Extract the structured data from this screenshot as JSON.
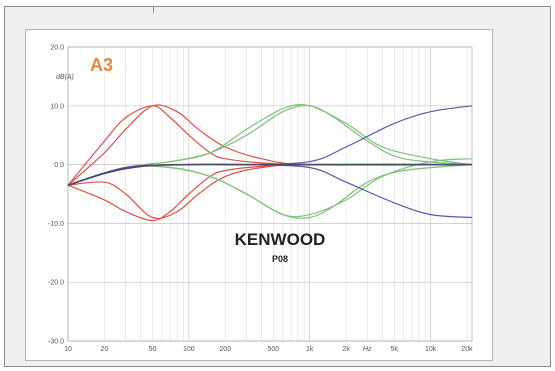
{
  "chart_data": {
    "type": "line",
    "brand": "KENWOOD",
    "model": "P08",
    "logo_text": "A3",
    "ylabel": "dB(A)",
    "xlabel": "Hz",
    "x_scale": "log",
    "xlim": [
      10,
      22000
    ],
    "ylim": [
      -30,
      20
    ],
    "yticks": [
      20,
      10,
      0,
      -10,
      -20,
      -30
    ],
    "ytick_labels": [
      "20.0",
      "10.0",
      "0.0",
      "-10.0",
      "-20.0",
      "-30.0"
    ],
    "xticks": [
      10,
      20,
      50,
      100,
      200,
      500,
      1000,
      2000,
      5000,
      10000,
      20000
    ],
    "xtick_labels": [
      "10",
      "20",
      "50",
      "100",
      "200",
      "500",
      "1k",
      "2k",
      "5k",
      "10k",
      "20k"
    ],
    "grid": true,
    "colors": {
      "red": "#d9534a",
      "green": "#7fc07a",
      "blue": "#5c57a8",
      "dark": "#4a4a6a"
    },
    "series": [
      {
        "color": "red",
        "x": [
          10,
          20,
          30,
          50,
          70,
          100,
          150,
          200,
          400,
          1000,
          22000
        ],
        "y": [
          -3.5,
          4,
          8,
          10,
          8,
          5,
          2,
          1,
          0.3,
          0,
          0
        ]
      },
      {
        "color": "red",
        "x": [
          10,
          20,
          30,
          50,
          80,
          120,
          200,
          400,
          1000,
          22000
        ],
        "y": [
          -3.5,
          2,
          6,
          10,
          9,
          6,
          3,
          1,
          0,
          0
        ]
      },
      {
        "color": "red",
        "x": [
          10,
          20,
          30,
          50,
          70,
          100,
          150,
          200,
          400,
          1000,
          22000
        ],
        "y": [
          -3.5,
          -6,
          -8,
          -9.5,
          -8,
          -5,
          -2,
          -1,
          -0.3,
          0,
          0
        ]
      },
      {
        "color": "red",
        "x": [
          10,
          20,
          30,
          50,
          80,
          120,
          200,
          400,
          1000,
          22000
        ],
        "y": [
          -3.5,
          -3,
          -5,
          -9,
          -8,
          -5,
          -2,
          -0.5,
          0,
          0
        ]
      },
      {
        "color": "green",
        "x": [
          10,
          30,
          70,
          150,
          300,
          600,
          1000,
          1600,
          3000,
          6000,
          22000
        ],
        "y": [
          -3.5,
          -0.5,
          0.5,
          2,
          5,
          9,
          10,
          8,
          4,
          1,
          0
        ]
      },
      {
        "color": "green",
        "x": [
          10,
          30,
          70,
          150,
          300,
          600,
          1000,
          2000,
          4000,
          10000,
          22000
        ],
        "y": [
          -3.5,
          -0.5,
          0.5,
          2,
          6,
          9.5,
          10,
          7,
          3,
          1,
          0
        ]
      },
      {
        "color": "green",
        "x": [
          10,
          30,
          70,
          150,
          300,
          600,
          1000,
          1600,
          3000,
          6000,
          22000
        ],
        "y": [
          -3.5,
          -0.5,
          -0.5,
          -2,
          -5,
          -8.5,
          -9,
          -7,
          -3,
          -1,
          0
        ]
      },
      {
        "color": "green",
        "x": [
          10,
          30,
          70,
          150,
          300,
          600,
          1000,
          2000,
          4000,
          10000,
          22000
        ],
        "y": [
          -3.5,
          -0.5,
          -0.5,
          -2,
          -5,
          -8.5,
          -8.5,
          -6,
          -2,
          0.5,
          1
        ]
      },
      {
        "color": "blue",
        "x": [
          10,
          30,
          100,
          300,
          1000,
          2000,
          5000,
          10000,
          22000
        ],
        "y": [
          -3.5,
          -0.5,
          0,
          0,
          0.5,
          3,
          7,
          9,
          10
        ]
      },
      {
        "color": "blue",
        "x": [
          10,
          30,
          100,
          300,
          1000,
          2000,
          5000,
          10000,
          22000
        ],
        "y": [
          -3.5,
          -0.5,
          0,
          0,
          -0.5,
          -3,
          -6.5,
          -8.5,
          -9
        ]
      },
      {
        "color": "dark",
        "x": [
          10,
          20,
          40,
          100,
          300,
          1000,
          22000
        ],
        "y": [
          -3.5,
          -1.5,
          -0.3,
          0,
          0,
          0,
          0
        ]
      }
    ]
  }
}
